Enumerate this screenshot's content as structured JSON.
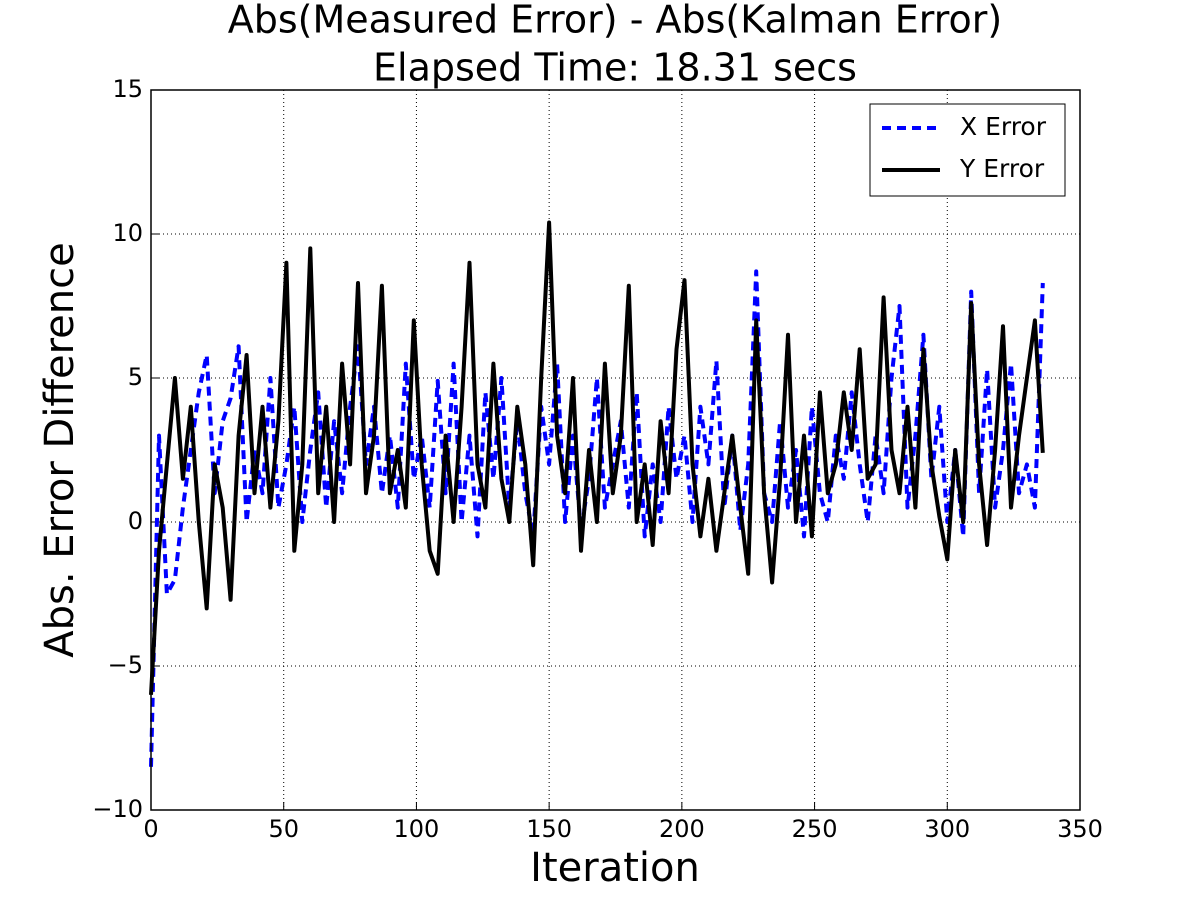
{
  "chart_data": {
    "type": "line",
    "title": "Abs(Measured Error) - Abs(Kalman Error)",
    "subtitle": "Elapsed Time: 18.31 secs",
    "x_label": "Iteration",
    "y_label": "Abs. Error Difference",
    "x": [
      0,
      3,
      6,
      9,
      12,
      15,
      18,
      21,
      24,
      27,
      30,
      33,
      36,
      39,
      42,
      45,
      48,
      51,
      54,
      57,
      60,
      63,
      66,
      69,
      72,
      75,
      78,
      81,
      84,
      87,
      90,
      93,
      96,
      99,
      102,
      105,
      108,
      111,
      114,
      117,
      120,
      123,
      126,
      129,
      132,
      135,
      138,
      141,
      144,
      147,
      150,
      153,
      156,
      159,
      162,
      165,
      168,
      171,
      174,
      177,
      180,
      183,
      186,
      189,
      192,
      195,
      198,
      201,
      204,
      207,
      210,
      213,
      216,
      219,
      222,
      225,
      228,
      231,
      234,
      237,
      240,
      243,
      246,
      249,
      252,
      255,
      258,
      261,
      264,
      267,
      270,
      273,
      276,
      279,
      282,
      285,
      288,
      291,
      294,
      297,
      300,
      303,
      306,
      309,
      312,
      315,
      318,
      321,
      324,
      327,
      330,
      333,
      336
    ],
    "series": [
      {
        "name": "X Error",
        "color": "#0000ff",
        "dashed": true,
        "values": [
          -8.5,
          3,
          -2.5,
          -2,
          0.5,
          2.5,
          4.5,
          5.8,
          1,
          3.5,
          4.3,
          6.1,
          0,
          2.5,
          1,
          5,
          0.5,
          2,
          4,
          0,
          2.5,
          4.5,
          0.5,
          3.5,
          1,
          4,
          6.1,
          2,
          4,
          1,
          3,
          0.5,
          5.5,
          1.5,
          3,
          0.5,
          4.9,
          1,
          5.5,
          0,
          3,
          -0.5,
          4.5,
          1.5,
          5,
          0.5,
          3.5,
          1,
          -0.5,
          4,
          2,
          5.5,
          0,
          3,
          -0.3,
          1.5,
          5,
          0.5,
          2,
          3.5,
          0.5,
          4.5,
          -0.5,
          2,
          0,
          4,
          1.5,
          3,
          0,
          4,
          2,
          5.6,
          0.5,
          3,
          -0.3,
          2,
          8.7,
          1,
          0,
          3.5,
          0.5,
          2.5,
          -0.5,
          4,
          1,
          0,
          3,
          1.5,
          4.5,
          2,
          0,
          3,
          1,
          5,
          7.5,
          0.5,
          3,
          6.5,
          1.5,
          4,
          0,
          2.5,
          -0.5,
          8,
          1,
          5.3,
          0.5,
          2.5,
          5.5,
          1,
          2,
          0.5,
          8.3
        ]
      },
      {
        "name": "Y Error",
        "color": "#000000",
        "dashed": false,
        "values": [
          -6,
          -1,
          2,
          5,
          1.5,
          4,
          0,
          -3,
          2,
          0.5,
          -2.7,
          3,
          5.8,
          1,
          4,
          0.5,
          3.5,
          9,
          -1,
          2,
          9.5,
          1,
          4,
          0,
          5.5,
          2,
          8.3,
          1,
          3,
          8.2,
          1,
          2.5,
          0.5,
          7,
          2,
          -1,
          -1.8,
          3,
          0,
          4,
          9,
          2,
          0.5,
          5.5,
          1.5,
          0,
          4,
          2,
          -1.5,
          5,
          10.4,
          3,
          1,
          5,
          -1,
          2.5,
          0,
          5.5,
          1,
          3,
          8.2,
          0,
          2,
          -0.8,
          3.5,
          1,
          6,
          8.4,
          2,
          -0.5,
          1.5,
          -1,
          1,
          3,
          0.5,
          -1.8,
          7,
          1,
          -2.1,
          1.5,
          6.5,
          0,
          3,
          -0.5,
          4.5,
          1,
          2,
          4.5,
          2.5,
          6,
          1.5,
          2,
          7.8,
          2.5,
          1,
          4,
          0.5,
          6,
          2,
          0.2,
          -1.3,
          2.5,
          0,
          7.6,
          2,
          -0.8,
          2.5,
          6.8,
          0.5,
          3,
          5,
          7,
          2.4
        ]
      }
    ],
    "xlim": [
      0,
      350
    ],
    "xticks": [
      0,
      50,
      100,
      150,
      200,
      250,
      300,
      350
    ],
    "ylim": [
      -10,
      15
    ],
    "yticks": [
      {
        "value": -10,
        "label": "−10"
      },
      {
        "value": -5,
        "label": "−5"
      },
      0,
      5,
      10,
      15
    ],
    "grid": true,
    "legend": "upper right"
  }
}
